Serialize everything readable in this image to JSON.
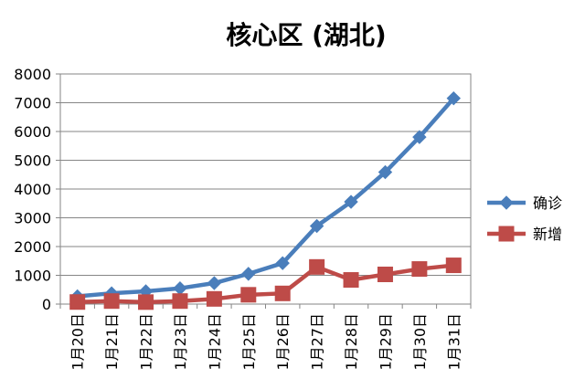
{
  "chart_data": {
    "type": "line",
    "title": "核心区 (湖北)",
    "xlabel": "",
    "ylabel": "",
    "categories": [
      "1月20日",
      "1月21日",
      "1月22日",
      "1月23日",
      "1月24日",
      "1月25日",
      "1月26日",
      "1月27日",
      "1月28日",
      "1月29日",
      "1月30日",
      "1月31日"
    ],
    "ylim": [
      0,
      8000
    ],
    "yticks": [
      0,
      1000,
      2000,
      3000,
      4000,
      5000,
      6000,
      7000,
      8000
    ],
    "grid": true,
    "legend": "right",
    "series": [
      {
        "name": "确诊",
        "color": "#4a7ebb",
        "marker": "diamond",
        "values": [
          270,
          375,
          444,
          549,
          729,
          1052,
          1423,
          2714,
          3554,
          4586,
          5806,
          7153
        ]
      },
      {
        "name": "新增",
        "color": "#be4b48",
        "marker": "square",
        "values": [
          72,
          105,
          69,
          105,
          180,
          323,
          371,
          1291,
          840,
          1032,
          1220,
          1347
        ]
      }
    ]
  }
}
